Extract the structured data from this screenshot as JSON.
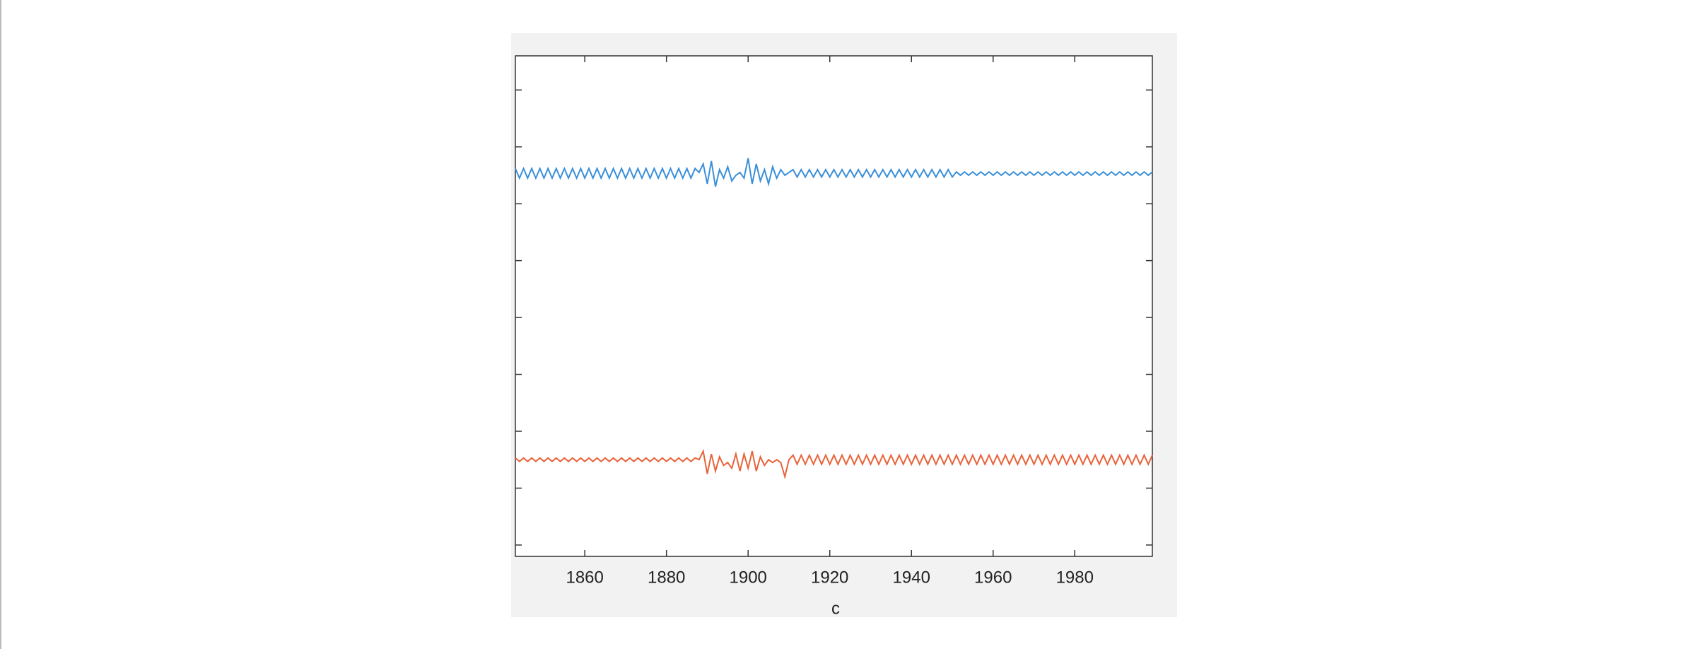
{
  "chart_data": {
    "type": "line",
    "xlabel": "c",
    "x": [
      1843,
      1844,
      1845,
      1846,
      1847,
      1848,
      1849,
      1850,
      1851,
      1852,
      1853,
      1854,
      1855,
      1856,
      1857,
      1858,
      1859,
      1860,
      1861,
      1862,
      1863,
      1864,
      1865,
      1866,
      1867,
      1868,
      1869,
      1870,
      1871,
      1872,
      1873,
      1874,
      1875,
      1876,
      1877,
      1878,
      1879,
      1880,
      1881,
      1882,
      1883,
      1884,
      1885,
      1886,
      1887,
      1888,
      1889,
      1890,
      1891,
      1892,
      1893,
      1894,
      1895,
      1896,
      1897,
      1898,
      1899,
      1900,
      1901,
      1902,
      1903,
      1904,
      1905,
      1906,
      1907,
      1908,
      1909,
      1910,
      1911,
      1912,
      1913,
      1914,
      1915,
      1916,
      1917,
      1918,
      1919,
      1920,
      1921,
      1922,
      1923,
      1924,
      1925,
      1926,
      1927,
      1928,
      1929,
      1930,
      1931,
      1932,
      1933,
      1934,
      1935,
      1936,
      1937,
      1938,
      1939,
      1940,
      1941,
      1942,
      1943,
      1944,
      1945,
      1946,
      1947,
      1948,
      1949,
      1950,
      1951,
      1952,
      1953,
      1954,
      1955,
      1956,
      1957,
      1958,
      1959,
      1960,
      1961,
      1962,
      1963,
      1964,
      1965,
      1966,
      1967,
      1968,
      1969,
      1970,
      1971,
      1972,
      1973,
      1974,
      1975,
      1976,
      1977,
      1978,
      1979,
      1980,
      1981,
      1982,
      1983,
      1984,
      1985,
      1986,
      1987,
      1988,
      1989,
      1990,
      1991,
      1992,
      1993,
      1994,
      1995,
      1996,
      1997,
      1998,
      1999
    ],
    "series": [
      {
        "color": "#3a8fd9",
        "values": [
          7.62,
          7.45,
          7.62,
          7.45,
          7.62,
          7.45,
          7.62,
          7.45,
          7.62,
          7.45,
          7.62,
          7.45,
          7.62,
          7.45,
          7.62,
          7.45,
          7.62,
          7.45,
          7.62,
          7.45,
          7.62,
          7.45,
          7.62,
          7.45,
          7.62,
          7.45,
          7.62,
          7.45,
          7.62,
          7.45,
          7.62,
          7.45,
          7.62,
          7.45,
          7.62,
          7.45,
          7.62,
          7.45,
          7.62,
          7.45,
          7.62,
          7.45,
          7.62,
          7.45,
          7.62,
          7.55,
          7.7,
          7.35,
          7.75,
          7.3,
          7.6,
          7.45,
          7.65,
          7.4,
          7.5,
          7.55,
          7.45,
          7.8,
          7.35,
          7.7,
          7.4,
          7.6,
          7.35,
          7.65,
          7.45,
          7.6,
          7.5,
          7.55,
          7.6,
          7.47,
          7.6,
          7.47,
          7.6,
          7.47,
          7.6,
          7.47,
          7.6,
          7.47,
          7.6,
          7.47,
          7.6,
          7.47,
          7.6,
          7.47,
          7.6,
          7.47,
          7.6,
          7.47,
          7.6,
          7.47,
          7.6,
          7.47,
          7.6,
          7.47,
          7.6,
          7.47,
          7.6,
          7.47,
          7.6,
          7.47,
          7.6,
          7.47,
          7.6,
          7.47,
          7.6,
          7.47,
          7.6,
          7.47,
          7.56,
          7.5,
          7.56,
          7.5,
          7.56,
          7.5,
          7.56,
          7.5,
          7.56,
          7.5,
          7.56,
          7.5,
          7.56,
          7.5,
          7.56,
          7.5,
          7.56,
          7.5,
          7.56,
          7.5,
          7.56,
          7.5,
          7.56,
          7.5,
          7.56,
          7.5,
          7.56,
          7.5,
          7.56,
          7.5,
          7.56,
          7.5,
          7.56,
          7.5,
          7.56,
          7.5,
          7.56,
          7.5,
          7.56,
          7.5,
          7.56,
          7.5,
          7.56,
          7.5,
          7.56,
          7.5,
          7.56,
          7.5,
          7.56
        ]
      },
      {
        "color": "#e8633a",
        "values": [
          2.53,
          2.47,
          2.53,
          2.47,
          2.53,
          2.47,
          2.53,
          2.47,
          2.53,
          2.47,
          2.53,
          2.47,
          2.53,
          2.47,
          2.53,
          2.47,
          2.53,
          2.47,
          2.53,
          2.47,
          2.53,
          2.47,
          2.53,
          2.47,
          2.53,
          2.47,
          2.53,
          2.47,
          2.53,
          2.47,
          2.53,
          2.47,
          2.53,
          2.47,
          2.53,
          2.47,
          2.53,
          2.47,
          2.53,
          2.47,
          2.53,
          2.47,
          2.53,
          2.47,
          2.53,
          2.5,
          2.65,
          2.25,
          2.6,
          2.3,
          2.55,
          2.4,
          2.45,
          2.35,
          2.6,
          2.3,
          2.6,
          2.35,
          2.65,
          2.3,
          2.55,
          2.4,
          2.5,
          2.45,
          2.5,
          2.45,
          2.2,
          2.5,
          2.58,
          2.42,
          2.58,
          2.42,
          2.58,
          2.42,
          2.58,
          2.42,
          2.58,
          2.42,
          2.58,
          2.42,
          2.58,
          2.42,
          2.58,
          2.42,
          2.58,
          2.42,
          2.58,
          2.42,
          2.58,
          2.42,
          2.58,
          2.42,
          2.58,
          2.42,
          2.58,
          2.42,
          2.58,
          2.42,
          2.58,
          2.42,
          2.58,
          2.42,
          2.58,
          2.42,
          2.58,
          2.42,
          2.58,
          2.42,
          2.58,
          2.42,
          2.58,
          2.42,
          2.58,
          2.42,
          2.58,
          2.42,
          2.58,
          2.42,
          2.58,
          2.42,
          2.58,
          2.42,
          2.58,
          2.42,
          2.58,
          2.42,
          2.58,
          2.42,
          2.58,
          2.42,
          2.58,
          2.42,
          2.58,
          2.42,
          2.58,
          2.42,
          2.58,
          2.42,
          2.58,
          2.42,
          2.58,
          2.42,
          2.58,
          2.42,
          2.58,
          2.42,
          2.58,
          2.42,
          2.58,
          2.42,
          2.58,
          2.42,
          2.58,
          2.42,
          2.58,
          2.42,
          2.58
        ]
      }
    ],
    "xlim": [
      1843,
      1999
    ],
    "xticks": [
      1860,
      1880,
      1900,
      1920,
      1940,
      1960,
      1980
    ],
    "ylim": [
      0.8,
      9.6
    ],
    "yticks": [
      1,
      2,
      3,
      4,
      5,
      6,
      7,
      8,
      9
    ]
  }
}
